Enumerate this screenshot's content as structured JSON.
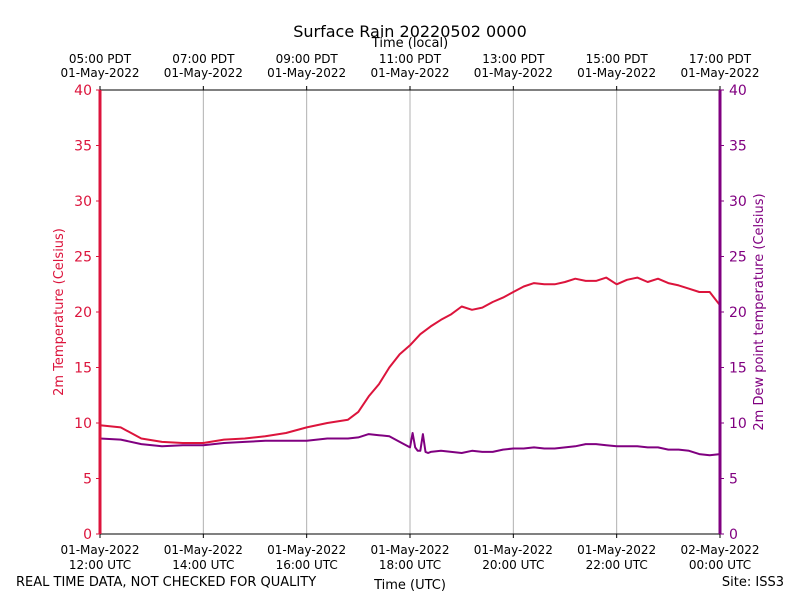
{
  "chart_data": {
    "type": "line",
    "title": "Surface Rain 20220502 0000",
    "top_axis_label": "Time (local)",
    "xlabel": "Time (UTC)",
    "ylabel_left": "2m Temperature (Celsius)",
    "ylabel_right": "2m Dew point temperature (Celsius)",
    "ylim": [
      0,
      40
    ],
    "yticks": [
      0,
      5,
      10,
      15,
      20,
      25,
      30,
      35,
      40
    ],
    "xlim_hours_utc": [
      12,
      24
    ],
    "grid": "vertical",
    "x_ticks_utc": [
      {
        "hour": 12,
        "line1": "01-May-2022",
        "line2": "12:00 UTC"
      },
      {
        "hour": 14,
        "line1": "01-May-2022",
        "line2": "14:00 UTC"
      },
      {
        "hour": 16,
        "line1": "01-May-2022",
        "line2": "16:00 UTC"
      },
      {
        "hour": 18,
        "line1": "01-May-2022",
        "line2": "18:00 UTC"
      },
      {
        "hour": 20,
        "line1": "01-May-2022",
        "line2": "20:00 UTC"
      },
      {
        "hour": 22,
        "line1": "01-May-2022",
        "line2": "22:00 UTC"
      },
      {
        "hour": 24,
        "line1": "02-May-2022",
        "line2": "00:00 UTC"
      }
    ],
    "x_ticks_local": [
      {
        "hour": 12,
        "line1": "05:00 PDT",
        "line2": "01-May-2022"
      },
      {
        "hour": 14,
        "line1": "07:00 PDT",
        "line2": "01-May-2022"
      },
      {
        "hour": 16,
        "line1": "09:00 PDT",
        "line2": "01-May-2022"
      },
      {
        "hour": 18,
        "line1": "11:00 PDT",
        "line2": "01-May-2022"
      },
      {
        "hour": 20,
        "line1": "13:00 PDT",
        "line2": "01-May-2022"
      },
      {
        "hour": 22,
        "line1": "15:00 PDT",
        "line2": "01-May-2022"
      },
      {
        "hour": 24,
        "line1": "17:00 PDT",
        "line2": "01-May-2022"
      }
    ],
    "series": [
      {
        "name": "2m Temperature",
        "axis": "left",
        "color": "#dc143c",
        "x": [
          12.0,
          12.4,
          12.8,
          13.2,
          13.6,
          14.0,
          14.4,
          14.8,
          15.2,
          15.6,
          16.0,
          16.4,
          16.8,
          17.0,
          17.2,
          17.4,
          17.6,
          17.8,
          18.0,
          18.2,
          18.4,
          18.6,
          18.8,
          19.0,
          19.2,
          19.4,
          19.6,
          19.8,
          20.0,
          20.2,
          20.4,
          20.6,
          20.8,
          21.0,
          21.2,
          21.4,
          21.6,
          21.8,
          22.0,
          22.2,
          22.4,
          22.6,
          22.8,
          23.0,
          23.2,
          23.4,
          23.6,
          23.8,
          24.0
        ],
        "values": [
          9.8,
          9.6,
          8.6,
          8.3,
          8.2,
          8.2,
          8.5,
          8.6,
          8.8,
          9.1,
          9.6,
          10.0,
          10.3,
          11.0,
          12.4,
          13.5,
          15.0,
          16.2,
          17.0,
          18.0,
          18.7,
          19.3,
          19.8,
          20.5,
          20.2,
          20.4,
          20.9,
          21.3,
          21.8,
          22.3,
          22.6,
          22.5,
          22.5,
          22.7,
          23.0,
          22.8,
          22.8,
          23.1,
          22.5,
          22.9,
          23.1,
          22.7,
          23.0,
          22.6,
          22.4,
          22.1,
          21.8,
          21.8,
          20.6
        ]
      },
      {
        "name": "2m Dew point temperature",
        "axis": "right",
        "color": "#800080",
        "x": [
          12.0,
          12.4,
          12.8,
          13.2,
          13.6,
          14.0,
          14.4,
          14.8,
          15.2,
          15.6,
          16.0,
          16.4,
          16.8,
          17.0,
          17.2,
          17.4,
          17.6,
          17.8,
          18.0,
          18.05,
          18.1,
          18.15,
          18.2,
          18.25,
          18.3,
          18.35,
          18.4,
          18.6,
          18.8,
          19.0,
          19.2,
          19.4,
          19.6,
          19.8,
          20.0,
          20.2,
          20.4,
          20.6,
          20.8,
          21.0,
          21.2,
          21.4,
          21.6,
          21.8,
          22.0,
          22.2,
          22.4,
          22.6,
          22.8,
          23.0,
          23.2,
          23.4,
          23.6,
          23.8,
          24.0
        ],
        "values": [
          8.6,
          8.5,
          8.1,
          7.9,
          8.0,
          8.0,
          8.2,
          8.3,
          8.4,
          8.4,
          8.4,
          8.6,
          8.6,
          8.7,
          9.0,
          8.9,
          8.8,
          8.3,
          7.8,
          9.1,
          7.8,
          7.5,
          7.5,
          9.0,
          7.4,
          7.3,
          7.4,
          7.5,
          7.4,
          7.3,
          7.5,
          7.4,
          7.4,
          7.6,
          7.7,
          7.7,
          7.8,
          7.7,
          7.7,
          7.8,
          7.9,
          8.1,
          8.1,
          8.0,
          7.9,
          7.9,
          7.9,
          7.8,
          7.8,
          7.6,
          7.6,
          7.5,
          7.2,
          7.1,
          7.2
        ]
      }
    ],
    "colors": {
      "left_axis": "#dc143c",
      "right_axis": "#800080",
      "grid": "#b0b0b0"
    }
  },
  "footer": {
    "disclaimer": "REAL TIME DATA, NOT CHECKED FOR QUALITY",
    "site": "Site: ISS3"
  }
}
